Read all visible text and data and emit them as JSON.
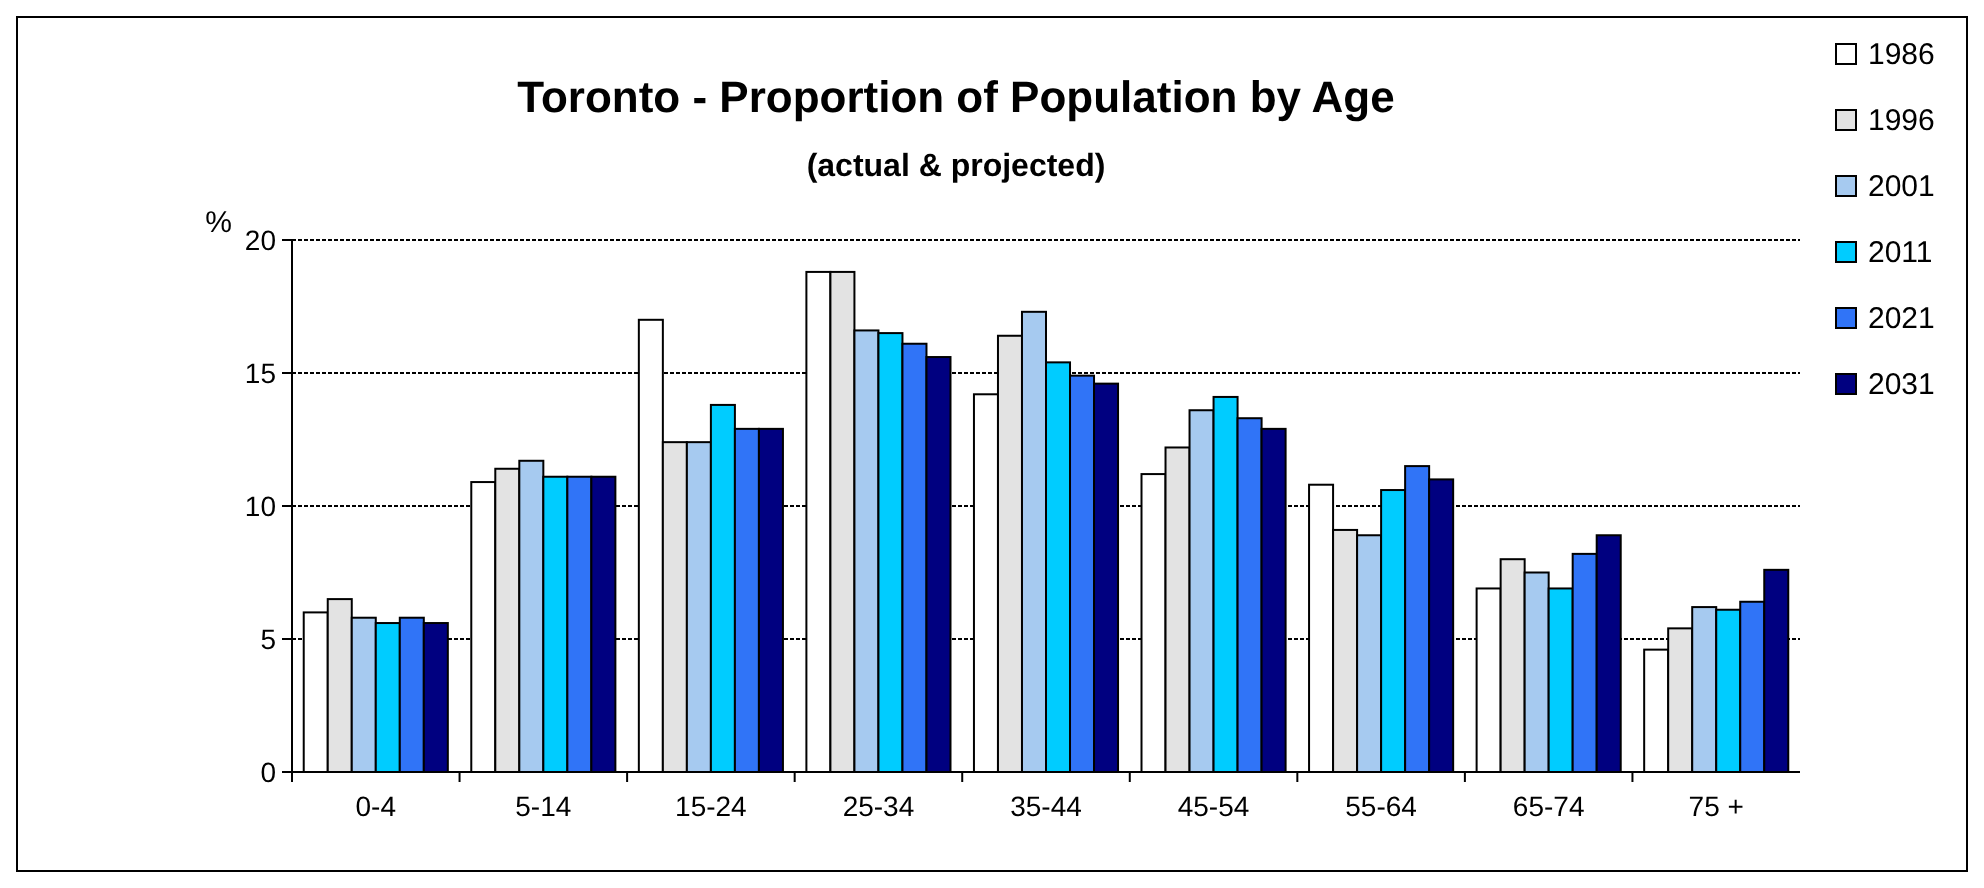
{
  "chart_data": {
    "type": "bar",
    "title": "Toronto - Proportion of Population by Age",
    "subtitle": "(actual & projected)",
    "ylabel": "%",
    "categories": [
      "0-4",
      "5-14",
      "15-24",
      "25-34",
      "35-44",
      "45-54",
      "55-64",
      "65-74",
      "75 +"
    ],
    "series": [
      {
        "name": "1986",
        "color": "#ffffff",
        "values": [
          6.0,
          10.9,
          17.0,
          18.8,
          14.2,
          11.2,
          10.8,
          6.9,
          4.6
        ]
      },
      {
        "name": "1996",
        "color": "#e3e3e3",
        "values": [
          6.5,
          11.4,
          12.4,
          18.8,
          16.4,
          12.2,
          9.1,
          8.0,
          5.4
        ]
      },
      {
        "name": "2001",
        "color": "#a6caf0",
        "values": [
          5.8,
          11.7,
          12.4,
          16.6,
          17.3,
          13.6,
          8.9,
          7.5,
          6.2
        ]
      },
      {
        "name": "2011",
        "color": "#00ccff",
        "values": [
          5.6,
          11.1,
          13.8,
          16.5,
          15.4,
          14.1,
          10.6,
          6.9,
          6.1
        ]
      },
      {
        "name": "2021",
        "color": "#3074f7",
        "values": [
          5.8,
          11.1,
          12.9,
          16.1,
          14.9,
          13.3,
          11.5,
          8.2,
          6.4
        ]
      },
      {
        "name": "2031",
        "color": "#000080",
        "values": [
          5.6,
          11.1,
          12.9,
          15.6,
          14.6,
          12.9,
          11.0,
          8.9,
          7.6
        ]
      }
    ],
    "ylim": [
      0,
      20
    ],
    "yticks": [
      0,
      5,
      10,
      15,
      20
    ],
    "grid": "y",
    "legend": "top right"
  }
}
